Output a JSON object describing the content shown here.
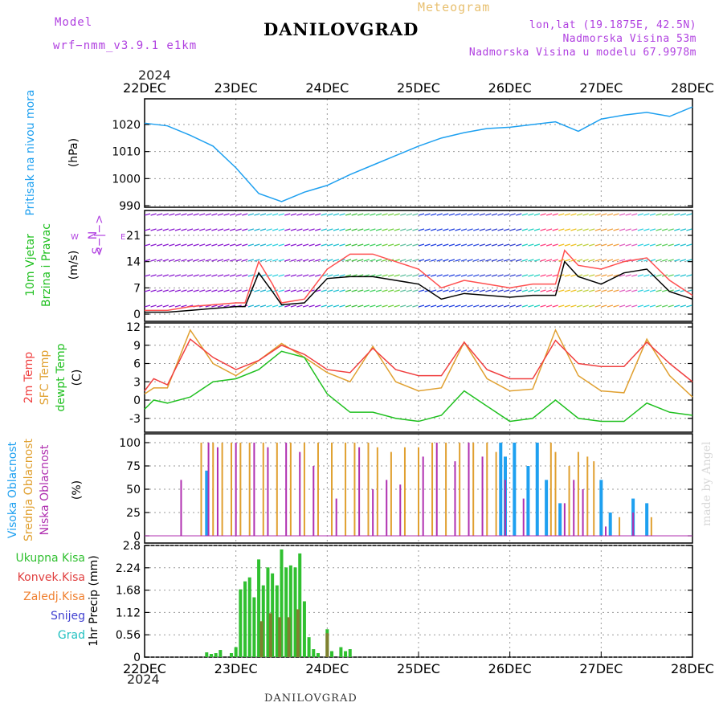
{
  "header": {
    "model_label": "Model",
    "model_name": "wrf−nmm_v3.9.1  e1km",
    "meteogram_label": "Meteogram",
    "station": "DANILOVGRAD",
    "lonlat": "lon,lat (19.1875E, 42.5N)",
    "elevation": "Nadmorska Visina 53m",
    "model_elevation": "Nadmorska Visina u modelu 67.9978m",
    "year": "2024",
    "credit": "made by Angel"
  },
  "footer": {
    "station": "DANILOVGRAD",
    "year": "2024"
  },
  "colors": {
    "pressure": "#1ea0f0",
    "temp2m": "#f04040",
    "sfc": "#e0a030",
    "dew": "#20c020",
    "high": "#1ea0f0",
    "mid": "#e0a030",
    "low": "#b030b0",
    "rain_total": "#30c030",
    "rain_conv": "#e04040",
    "rain_strat": "#f08030",
    "snow": "#4040d0",
    "hail": "#20c0c0"
  },
  "chart_data": [
    {
      "type": "line",
      "panel": "pressure",
      "ylabel_lines": [
        "Pritisak na nivou mora",
        "(hPa)"
      ],
      "ylim": [
        990,
        1030
      ],
      "yticks": [
        990,
        1000,
        1010,
        1020
      ],
      "x_ticks": [
        "22DEC",
        "23DEC",
        "24DEC",
        "25DEC",
        "26DEC",
        "27DEC",
        "28DEC"
      ],
      "x": [
        0,
        0.25,
        0.5,
        0.75,
        1.0,
        1.25,
        1.5,
        1.75,
        2.0,
        2.25,
        2.5,
        2.75,
        3.0,
        3.25,
        3.5,
        3.75,
        4.0,
        4.25,
        4.5,
        4.75,
        5.0,
        5.25,
        5.5,
        5.75,
        6.0
      ],
      "series": [
        {
          "values": [
            1020.5,
            1019.5,
            1016,
            1012,
            1004,
            994.5,
            991.5,
            995,
            997.5,
            1001.5,
            1005,
            1008.5,
            1012,
            1015,
            1017,
            1018.5,
            1019,
            1020,
            1021,
            1017.5,
            1022,
            1023.5,
            1024.5,
            1023,
            1026.5
          ]
        }
      ]
    },
    {
      "type": "line",
      "panel": "wind",
      "ylabel_lines": [
        "10m Vjetar",
        "Brzina i Pravac",
        "(m/s)"
      ],
      "compass": {
        "w": "W",
        "e": "E",
        "n": "N",
        "s": "S",
        "arrow": "<−|−>"
      },
      "ylim": [
        0,
        28
      ],
      "yticks": [
        0,
        7,
        14,
        21
      ],
      "x": [
        0,
        0.25,
        0.5,
        0.75,
        1.0,
        1.1,
        1.25,
        1.4,
        1.5,
        1.75,
        2.0,
        2.25,
        2.5,
        2.75,
        3.0,
        3.25,
        3.5,
        3.75,
        4.0,
        4.25,
        4.5,
        4.6,
        4.75,
        5.0,
        5.25,
        5.5,
        5.75,
        6.0
      ],
      "series": [
        {
          "name": "speed",
          "values": [
            0.5,
            0.5,
            1,
            1.5,
            2,
            2,
            11,
            6,
            2.5,
            3,
            9.5,
            10,
            10,
            9,
            8,
            4,
            5.5,
            5,
            4.5,
            5,
            5,
            14,
            10,
            8,
            11,
            12,
            6,
            4
          ]
        },
        {
          "name": "gust",
          "values": [
            1,
            1,
            2,
            2.5,
            3,
            3,
            14,
            8,
            3,
            4,
            12,
            16,
            16,
            14,
            12,
            7,
            9,
            8,
            7,
            8,
            8,
            17,
            13,
            12,
            14,
            15,
            9,
            5
          ]
        }
      ]
    },
    {
      "type": "line",
      "panel": "temperature",
      "ylabel_lines": [
        "2m Temp",
        "SFC Temp",
        "dewpt Temp",
        "(C)"
      ],
      "ylim": [
        -6,
        12
      ],
      "yticks": [
        -3,
        0,
        3,
        6,
        9,
        12
      ],
      "x": [
        0,
        0.1,
        0.25,
        0.5,
        0.75,
        1.0,
        1.25,
        1.5,
        1.75,
        2.0,
        2.25,
        2.5,
        2.75,
        3.0,
        3.25,
        3.5,
        3.75,
        4.0,
        4.25,
        4.5,
        4.75,
        5.0,
        5.25,
        5.5,
        5.75,
        6.0
      ],
      "series": [
        {
          "name": "2m Temp",
          "values": [
            1.5,
            3.5,
            2.5,
            10,
            7,
            5,
            6.5,
            9,
            7.5,
            5,
            4.5,
            8.5,
            5,
            4,
            4,
            9.5,
            5,
            3.5,
            3.5,
            9.8,
            6,
            5.5,
            5.5,
            9.5,
            6,
            3
          ]
        },
        {
          "name": "SFC Temp",
          "values": [
            1,
            2,
            2,
            11.5,
            6,
            4,
            6.5,
            9.3,
            7,
            4.5,
            3,
            8.8,
            3,
            1.5,
            2,
            9.5,
            3.5,
            1.5,
            1.8,
            11.5,
            4,
            1.5,
            1.2,
            10,
            4,
            0.5
          ]
        },
        {
          "name": "dewpt Temp",
          "values": [
            -1.5,
            0,
            -0.5,
            0.5,
            3,
            3.5,
            5,
            8,
            7,
            1,
            -2,
            -2,
            -3,
            -3.5,
            -2.5,
            1.5,
            -1,
            -3.5,
            -3,
            0,
            -3,
            -3.5,
            -3.5,
            -0.5,
            -2,
            -2.5
          ]
        }
      ]
    },
    {
      "type": "bar",
      "panel": "cloud",
      "ylabel_lines": [
        "Visoka Oblacnost",
        "Srednja Oblacnost",
        "Niska Oblacnost",
        "(%)"
      ],
      "ylim": [
        0,
        100
      ],
      "yticks": [
        0,
        25,
        50,
        75,
        100
      ],
      "series": [
        {
          "name": "Visoka Oblacnost",
          "points": [
            [
              0.68,
              70
            ],
            [
              3.9,
              100
            ],
            [
              3.95,
              85
            ],
            [
              4.05,
              100
            ],
            [
              4.2,
              75
            ],
            [
              4.3,
              100
            ],
            [
              4.4,
              60
            ],
            [
              4.55,
              35
            ],
            [
              5.0,
              60
            ],
            [
              5.1,
              25
            ],
            [
              5.35,
              40
            ],
            [
              5.5,
              35
            ]
          ]
        },
        {
          "name": "Srednja Oblacnost",
          "points": [
            [
              0.62,
              100
            ],
            [
              0.75,
              100
            ],
            [
              0.85,
              100
            ],
            [
              0.95,
              100
            ],
            [
              1.05,
              100
            ],
            [
              1.15,
              100
            ],
            [
              1.3,
              100
            ],
            [
              1.45,
              100
            ],
            [
              1.6,
              100
            ],
            [
              1.75,
              100
            ],
            [
              1.9,
              100
            ],
            [
              2.05,
              100
            ],
            [
              2.2,
              100
            ],
            [
              2.3,
              100
            ],
            [
              2.45,
              100
            ],
            [
              2.55,
              95
            ],
            [
              2.7,
              90
            ],
            [
              2.85,
              95
            ],
            [
              3.0,
              95
            ],
            [
              3.15,
              100
            ],
            [
              3.3,
              100
            ],
            [
              3.45,
              100
            ],
            [
              3.6,
              100
            ],
            [
              3.75,
              100
            ],
            [
              3.85,
              90
            ],
            [
              4.45,
              100
            ],
            [
              4.5,
              90
            ],
            [
              4.65,
              75
            ],
            [
              4.75,
              90
            ],
            [
              4.85,
              85
            ],
            [
              4.92,
              80
            ],
            [
              5.2,
              20
            ],
            [
              5.55,
              20
            ]
          ]
        },
        {
          "name": "Niska Oblacnost",
          "points": [
            [
              0.4,
              60
            ],
            [
              0.7,
              100
            ],
            [
              0.8,
              95
            ],
            [
              1.0,
              100
            ],
            [
              1.2,
              100
            ],
            [
              1.35,
              95
            ],
            [
              1.55,
              100
            ],
            [
              1.7,
              90
            ],
            [
              1.85,
              75
            ],
            [
              2.1,
              40
            ],
            [
              2.35,
              95
            ],
            [
              2.5,
              50
            ],
            [
              2.65,
              60
            ],
            [
              2.8,
              55
            ],
            [
              3.05,
              85
            ],
            [
              3.2,
              100
            ],
            [
              3.4,
              80
            ],
            [
              3.55,
              100
            ],
            [
              3.7,
              85
            ],
            [
              3.95,
              60
            ],
            [
              4.15,
              40
            ],
            [
              4.6,
              35
            ],
            [
              4.7,
              60
            ],
            [
              4.8,
              50
            ],
            [
              5.05,
              10
            ],
            [
              5.35,
              25
            ]
          ]
        }
      ]
    },
    {
      "type": "bar",
      "panel": "precip",
      "ylabel_lines": [
        "1hr Precip (mm)"
      ],
      "legend": [
        "Ukupna Kisa",
        "Konvek.Kisa",
        "Zaledj.Kisa",
        "Snijeg",
        "Grad"
      ],
      "ylim": [
        0,
        2.8
      ],
      "yticks": [
        "0",
        "0.56",
        "1.12",
        "1.68",
        "2.24",
        "2.8"
      ],
      "series": [
        {
          "name": "Ukupna Kisa",
          "points": [
            [
              0.68,
              0.12
            ],
            [
              0.73,
              0.08
            ],
            [
              0.78,
              0.1
            ],
            [
              0.83,
              0.18
            ],
            [
              0.95,
              0.1
            ],
            [
              1.0,
              0.25
            ],
            [
              1.05,
              1.7
            ],
            [
              1.1,
              1.9
            ],
            [
              1.15,
              2.0
            ],
            [
              1.2,
              1.5
            ],
            [
              1.25,
              2.45
            ],
            [
              1.3,
              1.8
            ],
            [
              1.35,
              2.25
            ],
            [
              1.4,
              2.1
            ],
            [
              1.45,
              1.8
            ],
            [
              1.5,
              2.7
            ],
            [
              1.55,
              2.25
            ],
            [
              1.6,
              2.3
            ],
            [
              1.65,
              2.25
            ],
            [
              1.7,
              2.6
            ],
            [
              1.75,
              1.4
            ],
            [
              1.8,
              0.5
            ],
            [
              1.85,
              0.2
            ],
            [
              1.9,
              0.1
            ],
            [
              2.0,
              0.7
            ],
            [
              2.05,
              0.15
            ],
            [
              2.15,
              0.25
            ],
            [
              2.2,
              0.15
            ],
            [
              2.25,
              0.2
            ]
          ]
        },
        {
          "name": "Zaledj.Kisa",
          "points": [
            [
              1.28,
              0.9
            ],
            [
              1.38,
              1.1
            ],
            [
              1.48,
              1.0
            ],
            [
              1.58,
              1.0
            ],
            [
              1.68,
              1.2
            ],
            [
              2.0,
              0.6
            ]
          ]
        }
      ]
    }
  ]
}
